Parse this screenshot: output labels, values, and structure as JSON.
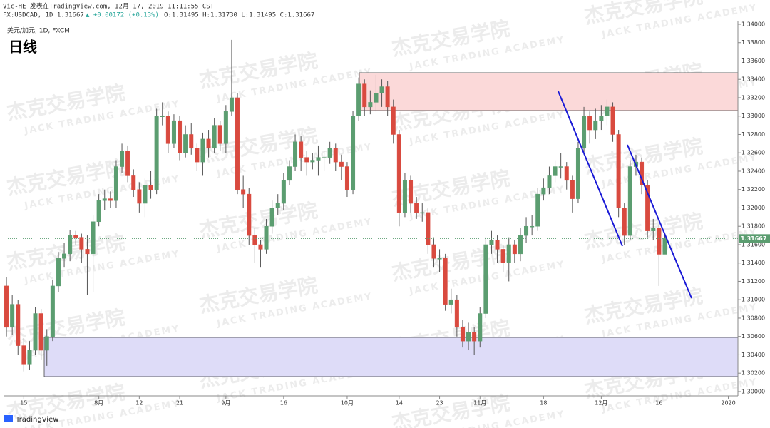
{
  "header": {
    "published": "Vic-HE 发表在TradingView.com, 12月 17, 2019 11:11:55 CST",
    "symbol": "FX:USDCAD, 1D 1.31667",
    "change": "▲ +0.00172 (+0.13%)",
    "ohlc": "O:1.31495 H:1.31730 L:1.31495 C:1.31667"
  },
  "watermark": {
    "cn": "杰克交易学院",
    "en": "JACK TRADING ACADEMY"
  },
  "footer": {
    "brand": "TradingView"
  },
  "chart_data": {
    "type": "candlestick",
    "title": "日线",
    "subtitle": "美元/加元, 1D, FXCM",
    "up_color": "#5b9d70",
    "down_color": "#d94a3f",
    "wick_color": "#555555",
    "open": [
      1.3115,
      1.307,
      1.3095,
      1.305,
      1.303,
      1.3045,
      1.3085,
      1.3045,
      1.306,
      1.3115,
      1.3145,
      1.315,
      1.317,
      1.3168,
      1.3155,
      1.315,
      1.3185,
      1.3208,
      1.321,
      1.3208,
      1.3245,
      1.3262,
      1.3235,
      1.322,
      1.3205,
      1.3225,
      1.322,
      1.33,
      1.33,
      1.327,
      1.3295,
      1.326,
      1.328,
      1.3265,
      1.325,
      1.3275,
      1.3265,
      1.329,
      1.327,
      1.3305,
      1.332,
      1.322,
      1.3215,
      1.317,
      1.316,
      1.3155,
      1.318,
      1.32,
      1.3205,
      1.323,
      1.3245,
      1.3272,
      1.3255,
      1.325,
      1.3252,
      1.3255,
      1.3255,
      1.3265,
      1.325,
      1.3245,
      1.322,
      1.33,
      1.3335,
      1.331,
      1.3315,
      1.3325,
      1.3332,
      1.331,
      1.328,
      1.3195,
      1.323,
      1.3205,
      1.3195,
      1.3195,
      1.316,
      1.3145,
      1.3145,
      1.3095,
      1.31,
      1.307,
      1.3055,
      1.3065,
      1.3055,
      1.3085,
      1.316,
      1.3165,
      1.3155,
      1.314,
      1.316,
      1.315,
      1.317,
      1.318,
      1.318,
      1.3215,
      1.3222,
      1.3235,
      1.3245,
      1.3245,
      1.323,
      1.321,
      1.3265,
      1.33,
      1.3285,
      1.3295,
      1.33,
      1.331,
      1.328,
      1.32,
      1.317,
      1.3245,
      1.325,
      1.3225,
      1.3175,
      1.3178,
      1.31495
    ],
    "high": [
      1.3125,
      1.3105,
      1.31,
      1.3058,
      1.3055,
      1.3092,
      1.309,
      1.3068,
      1.3122,
      1.3152,
      1.3162,
      1.3176,
      1.3175,
      1.3172,
      1.317,
      1.3192,
      1.3215,
      1.322,
      1.3218,
      1.3252,
      1.327,
      1.3268,
      1.3242,
      1.3228,
      1.3232,
      1.324,
      1.3308,
      1.3315,
      1.3305,
      1.3302,
      1.33,
      1.329,
      1.3292,
      1.327,
      1.3282,
      1.3285,
      1.3298,
      1.3295,
      1.3312,
      1.3383,
      1.3325,
      1.3235,
      1.3222,
      1.3178,
      1.3165,
      1.3188,
      1.3208,
      1.3215,
      1.3238,
      1.3252,
      1.328,
      1.3278,
      1.3262,
      1.326,
      1.3268,
      1.3262,
      1.3272,
      1.327,
      1.3258,
      1.325,
      1.3306,
      1.3342,
      1.334,
      1.3328,
      1.3345,
      1.334,
      1.3338,
      1.3318,
      1.3285,
      1.3238,
      1.3235,
      1.3212,
      1.3205,
      1.32,
      1.3168,
      1.3155,
      1.315,
      1.3112,
      1.3105,
      1.3078,
      1.3075,
      1.307,
      1.3092,
      1.3168,
      1.3175,
      1.317,
      1.316,
      1.3168,
      1.3165,
      1.3178,
      1.319,
      1.3192,
      1.3222,
      1.3232,
      1.3245,
      1.3252,
      1.326,
      1.325,
      1.3235,
      1.3272,
      1.331,
      1.3305,
      1.3308,
      1.3312,
      1.3318,
      1.3315,
      1.3285,
      1.3205,
      1.3252,
      1.3258,
      1.3255,
      1.323,
      1.3188,
      1.3182,
      1.3173
    ],
    "low": [
      1.306,
      1.3062,
      1.304,
      1.3022,
      1.3024,
      1.304,
      1.3035,
      1.3028,
      1.3055,
      1.3108,
      1.3135,
      1.3142,
      1.316,
      1.314,
      1.3105,
      1.3108,
      1.318,
      1.3198,
      1.32,
      1.32,
      1.3238,
      1.3228,
      1.3212,
      1.3195,
      1.319,
      1.321,
      1.3215,
      1.329,
      1.326,
      1.3265,
      1.3252,
      1.3255,
      1.3258,
      1.324,
      1.3235,
      1.3255,
      1.326,
      1.3262,
      1.326,
      1.33,
      1.3215,
      1.32,
      1.316,
      1.314,
      1.3135,
      1.315,
      1.3172,
      1.3192,
      1.3198,
      1.3225,
      1.324,
      1.324,
      1.3235,
      1.3242,
      1.3235,
      1.324,
      1.3248,
      1.324,
      1.323,
      1.3212,
      1.3215,
      1.3295,
      1.33,
      1.3302,
      1.3305,
      1.331,
      1.33,
      1.327,
      1.318,
      1.319,
      1.3195,
      1.3188,
      1.3185,
      1.315,
      1.3135,
      1.313,
      1.3088,
      1.3085,
      1.306,
      1.3048,
      1.3045,
      1.304,
      1.3048,
      1.308,
      1.315,
      1.314,
      1.313,
      1.312,
      1.314,
      1.3142,
      1.3162,
      1.317,
      1.3175,
      1.3208,
      1.3215,
      1.3228,
      1.3232,
      1.322,
      1.3195,
      1.3205,
      1.3258,
      1.327,
      1.3275,
      1.3285,
      1.329,
      1.3272,
      1.319,
      1.316,
      1.3165,
      1.3235,
      1.3215,
      1.3168,
      1.3165,
      1.3115,
      1.31495
    ],
    "close": [
      1.307,
      1.3095,
      1.305,
      1.303,
      1.3045,
      1.3085,
      1.3045,
      1.306,
      1.3115,
      1.3145,
      1.315,
      1.317,
      1.3168,
      1.3155,
      1.315,
      1.3185,
      1.3208,
      1.321,
      1.3208,
      1.3245,
      1.3262,
      1.3235,
      1.322,
      1.3205,
      1.3225,
      1.322,
      1.33,
      1.33,
      1.327,
      1.3295,
      1.326,
      1.328,
      1.3265,
      1.325,
      1.3275,
      1.3265,
      1.329,
      1.327,
      1.3305,
      1.332,
      1.322,
      1.3215,
      1.317,
      1.316,
      1.3155,
      1.318,
      1.32,
      1.3205,
      1.323,
      1.3245,
      1.3272,
      1.3255,
      1.325,
      1.3252,
      1.3255,
      1.3255,
      1.3265,
      1.325,
      1.3245,
      1.322,
      1.33,
      1.3335,
      1.331,
      1.3315,
      1.3325,
      1.3332,
      1.331,
      1.328,
      1.3195,
      1.323,
      1.3205,
      1.3195,
      1.3195,
      1.316,
      1.3145,
      1.3145,
      1.3095,
      1.31,
      1.307,
      1.3055,
      1.3065,
      1.3055,
      1.3085,
      1.316,
      1.3165,
      1.3155,
      1.314,
      1.316,
      1.315,
      1.317,
      1.318,
      1.318,
      1.3215,
      1.3222,
      1.3235,
      1.3245,
      1.3245,
      1.323,
      1.321,
      1.3265,
      1.33,
      1.3285,
      1.3295,
      1.33,
      1.331,
      1.328,
      1.32,
      1.317,
      1.3245,
      1.325,
      1.3225,
      1.3175,
      1.3178,
      1.31495,
      1.31667
    ],
    "last_price": 1.31667,
    "xlim": [
      -0.5,
      126.66
    ],
    "xticks": [
      {
        "value": 3,
        "label": "15"
      },
      {
        "value": 16,
        "label": "8月"
      },
      {
        "value": 23,
        "label": "12"
      },
      {
        "value": 30,
        "label": "21"
      },
      {
        "value": 38,
        "label": "9月"
      },
      {
        "value": 48,
        "label": "16"
      },
      {
        "value": 59,
        "label": "10月"
      },
      {
        "value": 68,
        "label": "14"
      },
      {
        "value": 75,
        "label": "23"
      },
      {
        "value": 82,
        "label": "11月"
      },
      {
        "value": 93,
        "label": "18"
      },
      {
        "value": 103,
        "label": "12月"
      },
      {
        "value": 113,
        "label": "16"
      },
      {
        "value": 125,
        "label": "2020"
      }
    ],
    "ylim": [
      1.29953,
      1.34031
    ],
    "yticks": [
      {
        "value": 1.3,
        "label": "1.30000"
      },
      {
        "value": 1.302,
        "label": "1.30200"
      },
      {
        "value": 1.304,
        "label": "1.30400"
      },
      {
        "value": 1.306,
        "label": "1.30600"
      },
      {
        "value": 1.308,
        "label": "1.30800"
      },
      {
        "value": 1.31,
        "label": "1.31000"
      },
      {
        "value": 1.312,
        "label": "1.31200"
      },
      {
        "value": 1.314,
        "label": "1.31400"
      },
      {
        "value": 1.316,
        "label": "1.31600"
      },
      {
        "value": 1.318,
        "label": "1.31800"
      },
      {
        "value": 1.32,
        "label": "1.32000"
      },
      {
        "value": 1.322,
        "label": "1.32200"
      },
      {
        "value": 1.324,
        "label": "1.32400"
      },
      {
        "value": 1.326,
        "label": "1.32600"
      },
      {
        "value": 1.328,
        "label": "1.32800"
      },
      {
        "value": 1.33,
        "label": "1.33000"
      },
      {
        "value": 1.332,
        "label": "1.33200"
      },
      {
        "value": 1.334,
        "label": "1.33400"
      },
      {
        "value": 1.336,
        "label": "1.33600"
      },
      {
        "value": 1.338,
        "label": "1.33800"
      },
      {
        "value": 1.34,
        "label": "1.34000"
      }
    ]
  }
}
